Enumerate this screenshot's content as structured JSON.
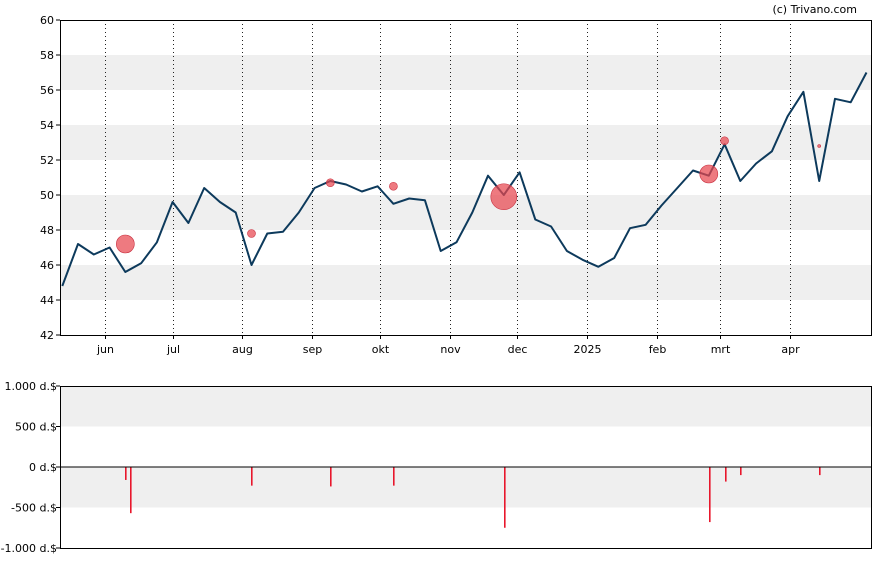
{
  "credit": "(c) Trivano.com",
  "chart_data": [
    {
      "type": "line",
      "title": "",
      "xlabel": "",
      "ylabel": "",
      "x_tick_labels": [
        "jun",
        "jul",
        "aug",
        "sep",
        "okt",
        "nov",
        "dec",
        "2025",
        "feb",
        "mrt",
        "apr"
      ],
      "y_ticks": [
        42,
        44,
        46,
        48,
        50,
        52,
        54,
        56,
        58,
        60
      ],
      "ylim": [
        42,
        60
      ],
      "grid": "alternating horizontal bands, dotted vertical lines at month starts",
      "colors": {
        "line": "#0d3a5c",
        "markers": "#e8474f",
        "band": "#efefef"
      },
      "x": [
        "2024-05-13",
        "2024-05-20",
        "2024-05-27",
        "2024-06-03",
        "2024-06-10",
        "2024-06-17",
        "2024-06-24",
        "2024-07-01",
        "2024-07-08",
        "2024-07-15",
        "2024-07-22",
        "2024-07-29",
        "2024-08-05",
        "2024-08-12",
        "2024-08-19",
        "2024-08-26",
        "2024-09-02",
        "2024-09-09",
        "2024-09-16",
        "2024-09-23",
        "2024-09-30",
        "2024-10-07",
        "2024-10-14",
        "2024-10-21",
        "2024-10-28",
        "2024-11-04",
        "2024-11-11",
        "2024-11-18",
        "2024-11-25",
        "2024-12-02",
        "2024-12-09",
        "2024-12-16",
        "2024-12-23",
        "2024-12-30",
        "2025-01-06",
        "2025-01-13",
        "2025-01-20",
        "2025-01-27",
        "2025-02-03",
        "2025-02-10",
        "2025-02-17",
        "2025-02-24",
        "2025-03-03",
        "2025-03-10",
        "2025-03-17",
        "2025-03-24",
        "2025-03-31",
        "2025-04-07",
        "2025-04-14",
        "2025-04-21",
        "2025-04-28",
        "2025-05-05"
      ],
      "series": [
        {
          "values": [
            44.8,
            47.2,
            46.6,
            47.0,
            45.6,
            46.1,
            47.3,
            49.6,
            48.4,
            50.4,
            49.6,
            49.0,
            46.0,
            47.8,
            47.9,
            49.0,
            50.4,
            50.8,
            50.6,
            50.2,
            50.5,
            49.5,
            49.8,
            49.7,
            46.8,
            47.3,
            49.0,
            51.1,
            50.0,
            51.3,
            48.6,
            48.2,
            46.8,
            46.3,
            45.9,
            46.4,
            48.1,
            48.3,
            49.4,
            50.4,
            51.4,
            51.1,
            52.9,
            50.8,
            51.8,
            52.5,
            54.5,
            55.9,
            50.8,
            55.5,
            55.3,
            57.0
          ]
        }
      ],
      "markers": [
        {
          "x": "2024-06-10",
          "y": 47.2,
          "size": "medium"
        },
        {
          "x": "2024-08-05",
          "y": 47.8,
          "size": "small"
        },
        {
          "x": "2024-09-09",
          "y": 50.7,
          "size": "small"
        },
        {
          "x": "2024-10-07",
          "y": 50.5,
          "size": "small"
        },
        {
          "x": "2024-11-25",
          "y": 49.9,
          "size": "large"
        },
        {
          "x": "2025-02-24",
          "y": 51.2,
          "size": "medium"
        },
        {
          "x": "2025-03-03",
          "y": 53.1,
          "size": "small"
        },
        {
          "x": "2025-04-14",
          "y": 52.8,
          "size": "tiny"
        }
      ]
    },
    {
      "type": "bar",
      "title": "",
      "y_tick_labels": [
        "1.000 d.$",
        "500 d.$",
        "0 d.$",
        "-500 d.$",
        "-1.000 d.$"
      ],
      "ylim": [
        -1000,
        1000
      ],
      "colors": {
        "bar": "#e8172c",
        "band": "#efefef"
      },
      "x": [
        "2024-06-10",
        "2024-06-12",
        "2024-08-05",
        "2024-09-09",
        "2024-10-07",
        "2024-11-25",
        "2025-02-24",
        "2025-03-03",
        "2025-03-10",
        "2025-04-14"
      ],
      "values": [
        -160,
        -570,
        -230,
        -240,
        -230,
        -750,
        -680,
        -180,
        -100,
        -100
      ]
    }
  ]
}
